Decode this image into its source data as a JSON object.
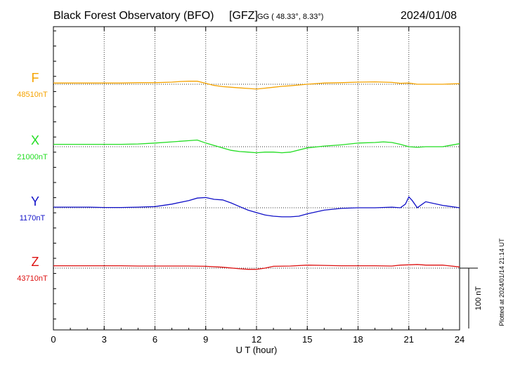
{
  "header": {
    "station": "Black Forest Observatory (BFO)",
    "institute": "[GFZ]",
    "coords": "GG ( 48.33°,   8.33°)",
    "date": "2024/01/08"
  },
  "side_note": "Plotted at 2024/01/14 21:14 UT",
  "colors": {
    "F": "#f5a300",
    "X": "#22dd22",
    "Y": "#1010c8",
    "Z": "#dd1111",
    "grid": "#333333"
  },
  "chart_data": {
    "type": "line",
    "xlabel": "U T (hour)",
    "xlim": [
      0,
      24
    ],
    "xticks": [
      0,
      3,
      6,
      9,
      12,
      15,
      18,
      21,
      24
    ],
    "scale_bar": "100 nT",
    "scale_bar_nT": 100,
    "grid": true,
    "series": [
      {
        "name": "F",
        "baseline_label": "48510nT",
        "baseline_nT": 48510,
        "x": [
          0,
          1,
          2,
          3,
          4,
          5,
          6,
          7,
          7.5,
          8,
          8.5,
          9,
          9.5,
          10,
          10.5,
          11,
          11.5,
          12,
          12.5,
          13,
          13.5,
          14,
          15,
          16,
          17,
          18,
          19,
          20,
          20.5,
          21,
          21.5,
          22,
          23,
          24
        ],
        "y": [
          2,
          2,
          2,
          2,
          2,
          2.5,
          2.5,
          3.5,
          4.5,
          5,
          5,
          1.5,
          -2,
          -4,
          -5,
          -6,
          -7,
          -8,
          -6.5,
          -5,
          -3.5,
          -2.5,
          0,
          2,
          2.5,
          3.5,
          4,
          3,
          1.5,
          2,
          0,
          0,
          0,
          1
        ]
      },
      {
        "name": "X",
        "baseline_label": "21000nT",
        "baseline_nT": 21000,
        "x": [
          0,
          1,
          2,
          3,
          4,
          5,
          6,
          7,
          8,
          8.5,
          9,
          9.5,
          10,
          10.5,
          11,
          11.5,
          12,
          12.5,
          13,
          13.5,
          14,
          15,
          16,
          17,
          18,
          19,
          19.5,
          20,
          20.5,
          21,
          21.5,
          22,
          23,
          24
        ],
        "y": [
          4,
          4,
          4,
          4,
          4,
          4.5,
          6,
          8,
          10,
          11,
          6,
          2,
          -2,
          -6,
          -8,
          -9,
          -10,
          -9,
          -9,
          -10,
          -9,
          -2,
          1,
          3,
          6,
          7,
          8,
          7,
          4,
          0,
          -1,
          0,
          0,
          5
        ]
      },
      {
        "name": "Y",
        "baseline_label": "1170nT",
        "baseline_nT": 1170,
        "x": [
          0,
          1,
          2,
          3,
          4,
          5,
          6,
          7,
          8,
          8.5,
          9,
          9.5,
          10,
          10.5,
          11,
          11.5,
          12,
          12.5,
          13,
          13.5,
          14,
          14.5,
          15,
          16,
          17,
          18,
          19,
          20,
          20.5,
          20.8,
          21,
          21.2,
          21.5,
          21.8,
          22,
          23,
          24
        ],
        "y": [
          1,
          1,
          1,
          0.5,
          0.5,
          1,
          2,
          6,
          12,
          16,
          17,
          14,
          13,
          8,
          2,
          -4,
          -8,
          -12,
          -14,
          -15,
          -15,
          -14,
          -10,
          -4,
          -1,
          0,
          0,
          1,
          0,
          6,
          18,
          12,
          0,
          6,
          10,
          4,
          0
        ]
      },
      {
        "name": "Z",
        "baseline_label": "43710nT",
        "baseline_nT": 43710,
        "x": [
          0,
          1,
          2,
          3,
          4,
          5,
          6,
          7,
          8,
          9,
          10,
          11,
          11.5,
          12,
          12.5,
          13,
          14,
          15,
          16,
          17,
          18,
          19,
          20,
          20.5,
          21,
          21.5,
          22,
          23,
          24
        ],
        "y": [
          4,
          4,
          4,
          4,
          4,
          3.5,
          3.5,
          3.5,
          3.5,
          3,
          1.5,
          -1,
          -2,
          -2,
          0,
          3,
          3.5,
          5,
          4.5,
          4,
          4,
          4,
          3.5,
          5,
          5.5,
          6,
          5,
          5,
          2
        ]
      }
    ]
  }
}
